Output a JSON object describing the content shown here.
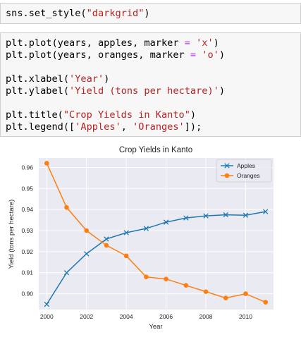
{
  "cells": [
    {
      "lines": [
        [
          {
            "t": "sns.set_style("
          },
          {
            "t": "\"darkgrid\"",
            "c": "str"
          },
          {
            "t": ")"
          }
        ]
      ]
    },
    {
      "lines": [
        [
          {
            "t": "plt.plot(years, apples, marker "
          },
          {
            "t": "=",
            "c": "op"
          },
          {
            "t": " "
          },
          {
            "t": "'x'",
            "c": "str"
          },
          {
            "t": ")"
          }
        ],
        [
          {
            "t": "plt.plot(years, oranges, marker "
          },
          {
            "t": "=",
            "c": "op"
          },
          {
            "t": " "
          },
          {
            "t": "'o'",
            "c": "str"
          },
          {
            "t": ")"
          }
        ],
        [],
        [
          {
            "t": "plt.xlabel("
          },
          {
            "t": "'Year'",
            "c": "str"
          },
          {
            "t": ")"
          }
        ],
        [
          {
            "t": "plt.ylabel("
          },
          {
            "t": "'Yield (tons per hectare)'",
            "c": "str"
          },
          {
            "t": ")"
          }
        ],
        [],
        [
          {
            "t": "plt.title("
          },
          {
            "t": "\"Crop Yields in Kanto\"",
            "c": "str"
          },
          {
            "t": ")"
          }
        ],
        [
          {
            "t": "plt.legend(["
          },
          {
            "t": "'Apples'",
            "c": "str"
          },
          {
            "t": ", "
          },
          {
            "t": "'Oranges'",
            "c": "str"
          },
          {
            "t": "]);"
          }
        ]
      ]
    }
  ],
  "chart_data": {
    "type": "line",
    "title": "Crop Yields in Kanto",
    "xlabel": "Year",
    "ylabel": "Yield (tons per hectare)",
    "x": [
      2000,
      2001,
      2002,
      2003,
      2004,
      2005,
      2006,
      2007,
      2008,
      2009,
      2010,
      2011
    ],
    "xticks": [
      2000,
      2002,
      2004,
      2006,
      2008,
      2010
    ],
    "yticks": [
      0.9,
      0.91,
      0.92,
      0.93,
      0.94,
      0.95,
      0.96
    ],
    "xlim": [
      1999.6,
      2011.4
    ],
    "ylim": [
      0.8925,
      0.9645
    ],
    "grid": true,
    "legend_position": "top-right",
    "series": [
      {
        "name": "Apples",
        "marker": "x",
        "color": "#1f77b4",
        "values": [
          0.895,
          0.91,
          0.919,
          0.926,
          0.929,
          0.931,
          0.934,
          0.936,
          0.937,
          0.9375,
          0.9373,
          0.939
        ]
      },
      {
        "name": "Oranges",
        "marker": "o",
        "color": "#ff7f0e",
        "values": [
          0.962,
          0.941,
          0.93,
          0.923,
          0.918,
          0.908,
          0.907,
          0.904,
          0.901,
          0.898,
          0.9,
          0.896
        ]
      }
    ],
    "colors": {
      "plot_background": "#eaeaf2",
      "grid": "#ffffff",
      "text": "#262626"
    }
  }
}
